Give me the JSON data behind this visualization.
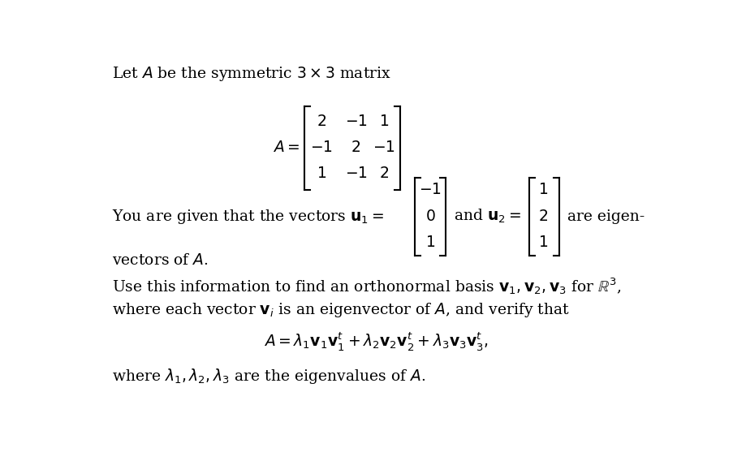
{
  "background_color": "#ffffff",
  "fig_width": 9.04,
  "fig_height": 5.68,
  "text_color": "#000000",
  "font_size": 13.5,
  "line1": "Let $A$ be the symmetric $3 \\times 3$ matrix",
  "matrix_A_label": "$A = $",
  "matrix_rows": [
    [
      "2",
      "-1",
      "1"
    ],
    [
      "-1",
      "2",
      "-1"
    ],
    [
      "1",
      "-1",
      "2"
    ]
  ],
  "eigen_intro": "You are given that the vectors $\\mathbf{u}_1 = $",
  "u1_vals": [
    "-1",
    "0",
    "1"
  ],
  "and_u2": "and $\\mathbf{u}_2 = $",
  "u2_vals": [
    "1",
    "2",
    "1"
  ],
  "are_eigen": "are eigen-",
  "vectors_of_A": "vectors of $A$.",
  "use_line1": "Use this information to find an orthonormal basis $\\mathbf{v}_1, \\mathbf{v}_2, \\mathbf{v}_3$ for $\\mathbb{R}^3$,",
  "use_line2": "where each vector $\\mathbf{v}_i$ is an eigenvector of $A$, and verify that",
  "formula": "$A = \\lambda_1 \\mathbf{v}_1 \\mathbf{v}_1^t + \\lambda_2 \\mathbf{v}_2 \\mathbf{v}_2^t + \\lambda_3 \\mathbf{v}_3 \\mathbf{v}_3^t,$",
  "where_line": "where $\\lambda_1, \\lambda_2, \\lambda_3$ are the eigenvalues of $A$."
}
